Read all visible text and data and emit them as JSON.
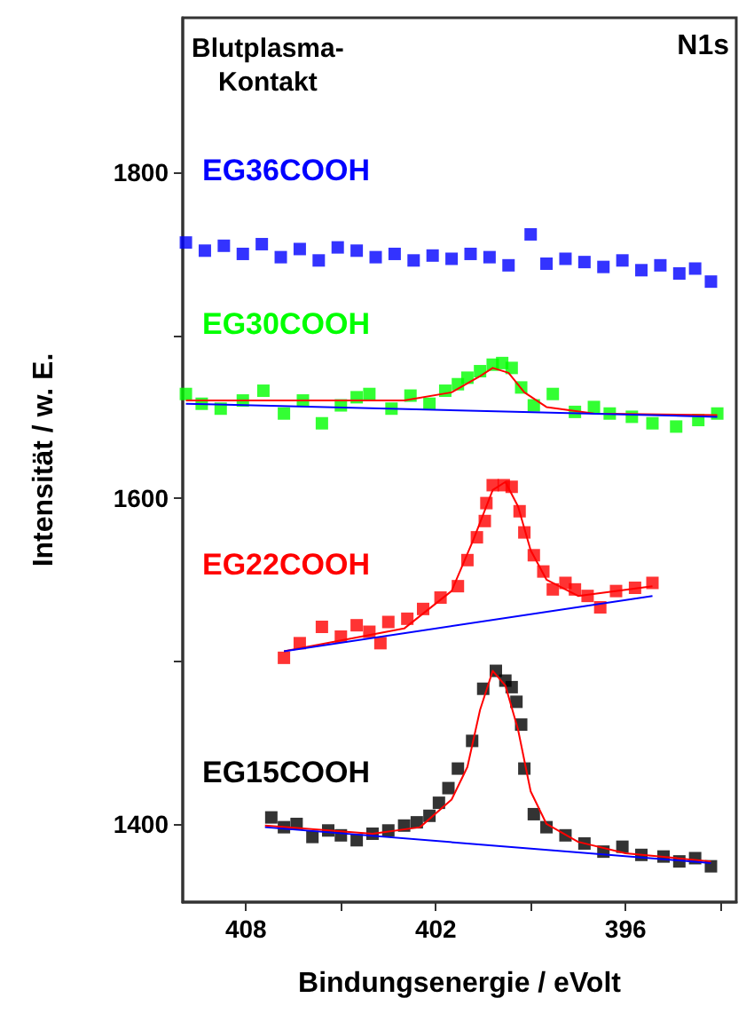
{
  "chart_data": {
    "type": "scatter",
    "xlabel": "Bindungsenergie / eVolt",
    "ylabel": "Intensität / w. E.",
    "annotations": [
      "Blutplasma-\nKontakt",
      "N1s"
    ],
    "xlim": [
      410,
      392.5
    ],
    "xticks": [
      408,
      {
        "value": 405,
        "label": null
      },
      402,
      {
        "value": 399,
        "label": null
      },
      396,
      {
        "value": 393,
        "label": null
      }
    ],
    "ylim": [
      1352,
      1895
    ],
    "yticks": [
      1400,
      {
        "value": 1500,
        "label": null
      },
      1600,
      {
        "value": 1700,
        "label": null
      },
      1800
    ],
    "grid": false,
    "legend": false,
    "marker": "square",
    "series": [
      {
        "name": "EG36COOH",
        "color": "#0000ff",
        "x": [
          409.9,
          409.3,
          408.7,
          408.1,
          407.5,
          406.9,
          406.3,
          405.7,
          405.1,
          404.5,
          403.9,
          403.3,
          402.7,
          402.1,
          401.5,
          400.9,
          400.3,
          399.7,
          399.0,
          398.5,
          397.9,
          397.3,
          396.7,
          396.1,
          395.5,
          394.9,
          394.3,
          393.8,
          393.3
        ],
        "values": [
          1757,
          1752,
          1755,
          1750,
          1756,
          1748,
          1753,
          1746,
          1754,
          1752,
          1748,
          1750,
          1746,
          1749,
          1747,
          1750,
          1748,
          1743,
          1762,
          1744,
          1747,
          1745,
          1742,
          1746,
          1740,
          1743,
          1738,
          1741,
          1733
        ]
      },
      {
        "name": "EG30COOH",
        "color": "#00ff00",
        "x": [
          409.9,
          409.4,
          408.8,
          408.1,
          407.45,
          406.8,
          406.2,
          405.6,
          405.0,
          404.5,
          404.1,
          403.4,
          402.8,
          402.2,
          401.7,
          401.3,
          401.0,
          400.6,
          400.2,
          399.9,
          399.6,
          399.3,
          398.9,
          398.3,
          397.6,
          397.0,
          396.5,
          395.8,
          395.15,
          394.4,
          393.7,
          393.1
        ],
        "values": [
          1664,
          1658,
          1655,
          1660,
          1666,
          1652,
          1660,
          1646,
          1657,
          1662,
          1664,
          1655,
          1663,
          1658,
          1666,
          1670,
          1674,
          1678,
          1682,
          1683,
          1680,
          1668,
          1657,
          1664,
          1653,
          1656,
          1652,
          1650,
          1646,
          1644,
          1648,
          1652
        ]
      },
      {
        "name": "EG22COOH",
        "color": "#ff0000",
        "x": [
          406.8,
          406.3,
          405.6,
          405.0,
          404.5,
          404.1,
          403.75,
          403.5,
          402.9,
          402.4,
          401.85,
          401.3,
          401.0,
          400.7,
          400.45,
          400.4,
          400.2,
          399.85,
          399.6,
          399.35,
          399.2,
          398.9,
          398.6,
          398.3,
          397.9,
          397.6,
          397.2,
          396.8,
          396.3,
          395.7,
          395.15
        ],
        "values": [
          1502,
          1511,
          1521,
          1515,
          1522,
          1518,
          1511,
          1524,
          1526,
          1532,
          1539,
          1546,
          1562,
          1576,
          1586,
          1597,
          1608,
          1608,
          1607,
          1592,
          1579,
          1565,
          1555,
          1544,
          1548,
          1544,
          1540,
          1533,
          1543,
          1545,
          1548
        ]
      },
      {
        "color": "#ff0000",
        "type": "line",
        "marker": "none",
        "x": [
          406.8,
          403,
          401.5,
          400.8,
          400.2,
          399.8,
          399.4,
          399,
          398.5,
          397.5,
          395.15
        ],
        "values": [
          1506,
          1520,
          1543,
          1575,
          1605,
          1610,
          1595,
          1568,
          1550,
          1540,
          1546
        ]
      },
      {
        "name": "EG15COOH",
        "color": "#000000",
        "x": [
          407.2,
          406.8,
          406.4,
          405.9,
          405.4,
          405.0,
          404.5,
          404.0,
          403.5,
          403.0,
          402.6,
          402.2,
          401.9,
          401.6,
          401.3,
          400.85,
          400.5,
          400.1,
          399.8,
          399.6,
          399.45,
          399.3,
          399.2,
          398.9,
          398.5,
          397.9,
          397.3,
          396.7,
          396.1,
          395.5,
          394.8,
          394.3,
          393.8,
          393.3
        ],
        "values": [
          1404,
          1398,
          1400,
          1392,
          1396,
          1393,
          1390,
          1394,
          1396,
          1399,
          1401,
          1405,
          1413,
          1422,
          1434,
          1451,
          1483,
          1494,
          1488,
          1484,
          1475,
          1461,
          1434,
          1406,
          1398,
          1393,
          1388,
          1383,
          1386,
          1381,
          1380,
          1377,
          1379,
          1374
        ]
      },
      {
        "color": "#ff0000",
        "type": "line",
        "marker": "none",
        "x": [
          407.4,
          404,
          402.5,
          401.5,
          401,
          400.6,
          400.2,
          399.8,
          399.4,
          399,
          398.5,
          397.5,
          396,
          393.3
        ],
        "values": [
          1399,
          1394,
          1398,
          1415,
          1435,
          1470,
          1494,
          1485,
          1458,
          1420,
          1400,
          1389,
          1382,
          1377
        ]
      },
      {
        "color": "#0000ff",
        "type": "line",
        "marker": "none",
        "x": [
          407.4,
          393.3
        ],
        "values": [
          1398,
          1376
        ]
      },
      {
        "color": "#0000ff",
        "type": "line",
        "marker": "none",
        "x": [
          406.8,
          395.15
        ],
        "values": [
          1506,
          1540
        ]
      },
      {
        "color": "#ff0000",
        "type": "line",
        "marker": "none",
        "x": [
          409.9,
          403,
          401.5,
          400.6,
          400.2,
          399.7,
          399.2,
          398.5,
          397,
          393.1
        ],
        "values": [
          1660,
          1660,
          1665,
          1675,
          1680,
          1677,
          1665,
          1656,
          1652,
          1651
        ]
      },
      {
        "color": "#0000ff",
        "type": "line",
        "marker": "none",
        "x": [
          409.9,
          393.1
        ],
        "values": [
          1658,
          1650
        ]
      }
    ]
  }
}
